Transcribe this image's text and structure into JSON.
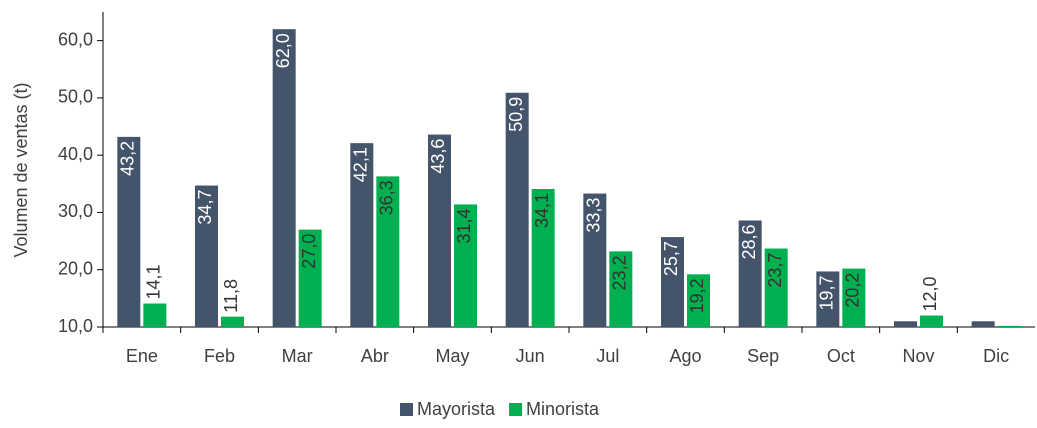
{
  "chart_data": {
    "type": "bar",
    "y_label": "Volumen de ventas (t)",
    "categories": [
      "Ene",
      "Feb",
      "Mar",
      "Abr",
      "May",
      "Jun",
      "Jul",
      "Ago",
      "Sep",
      "Oct",
      "Nov",
      "Dic"
    ],
    "series": [
      {
        "name": "Mayorista",
        "color": "#44546a",
        "values": [
          43.2,
          34.7,
          62.0,
          42.1,
          43.6,
          50.9,
          33.3,
          25.7,
          28.6,
          19.7,
          11.0,
          11.0
        ],
        "value_labels": [
          "43,2",
          "34,7",
          "62,0",
          "42,1",
          "43,6",
          "50,9",
          "33,3",
          "25,7",
          "28,6",
          "19,7",
          null,
          null
        ]
      },
      {
        "name": "Minorista",
        "color": "#00b050",
        "values": [
          14.1,
          11.8,
          27.0,
          36.3,
          31.4,
          34.1,
          23.2,
          19.2,
          23.7,
          20.2,
          12.0,
          10.2
        ],
        "value_labels": [
          "14,1",
          "11,8",
          "27,0",
          "36,3",
          "31,4",
          "34,1",
          "23,2",
          "19,2",
          "23,7",
          "20,2",
          "12,0",
          null
        ]
      }
    ],
    "ylim": [
      10,
      65
    ],
    "yticks": [
      {
        "value": 10,
        "label": "10,0"
      },
      {
        "value": 20,
        "label": "20,0"
      },
      {
        "value": 30,
        "label": "30,0"
      },
      {
        "value": 40,
        "label": "40,0"
      },
      {
        "value": 50,
        "label": "50,0"
      },
      {
        "value": 60,
        "label": "60,0"
      }
    ],
    "legend": "bottom"
  }
}
